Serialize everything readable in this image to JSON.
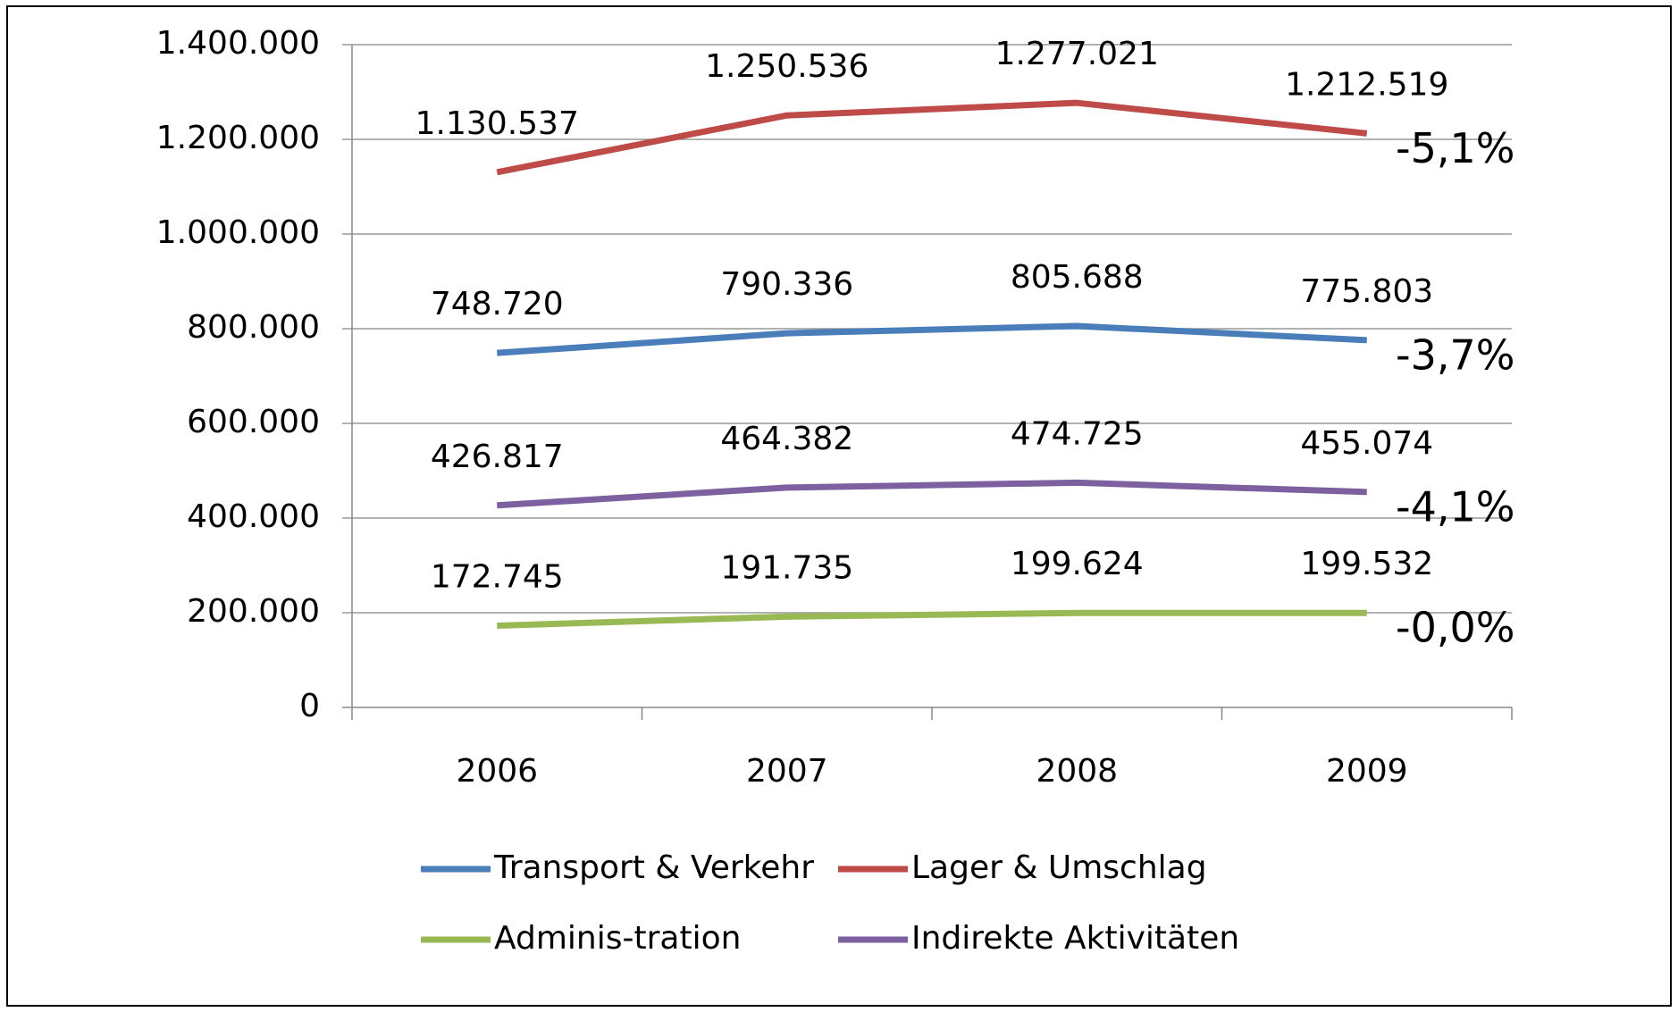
{
  "chart_data": {
    "type": "line",
    "categories": [
      "2006",
      "2007",
      "2008",
      "2009"
    ],
    "series": [
      {
        "name": "Transport & Verkehr",
        "color": "#4a7ebb",
        "values": [
          748720,
          790336,
          805688,
          775803
        ],
        "value_labels": [
          "748.720",
          "790.336",
          "805.688",
          "775.803"
        ],
        "annotation": "-3,7%",
        "annotation_color": "#1f6a8f"
      },
      {
        "name": "Lager & Umschlag",
        "color": "#be4b48",
        "values": [
          1130537,
          1250536,
          1277021,
          1212519
        ],
        "value_labels": [
          "1.130.537",
          "1.250.536",
          "1.277.021",
          "1.212.519"
        ],
        "annotation": "-5,1%",
        "annotation_color": "#c0202a"
      },
      {
        "name": "Adminis-tration",
        "color": "#98b954",
        "values": [
          172745,
          191735,
          199624,
          199532
        ],
        "value_labels": [
          "172.745",
          "191.735",
          "199.624",
          "199.532"
        ],
        "annotation": "-0,0%",
        "annotation_color": "#92d050"
      },
      {
        "name": "Indirekte Aktivitäten",
        "color": "#7d60a0",
        "values": [
          426817,
          464382,
          474725,
          455074
        ],
        "value_labels": [
          "426.817",
          "464.382",
          "474.725",
          "455.074"
        ],
        "annotation": "-4,1%",
        "annotation_color": "#7030a0"
      }
    ],
    "ylim": [
      0,
      1400000
    ],
    "yticks": [
      {
        "value": 0,
        "label": "0"
      },
      {
        "value": 200000,
        "label": "200.000"
      },
      {
        "value": 400000,
        "label": "400.000"
      },
      {
        "value": 600000,
        "label": "600.000"
      },
      {
        "value": 800000,
        "label": "800.000"
      },
      {
        "value": 1000000,
        "label": "1.000.000"
      },
      {
        "value": 1200000,
        "label": "1.200.000"
      },
      {
        "value": 1400000,
        "label": "1.400.000"
      }
    ],
    "grid": true,
    "legend": "bottom"
  }
}
